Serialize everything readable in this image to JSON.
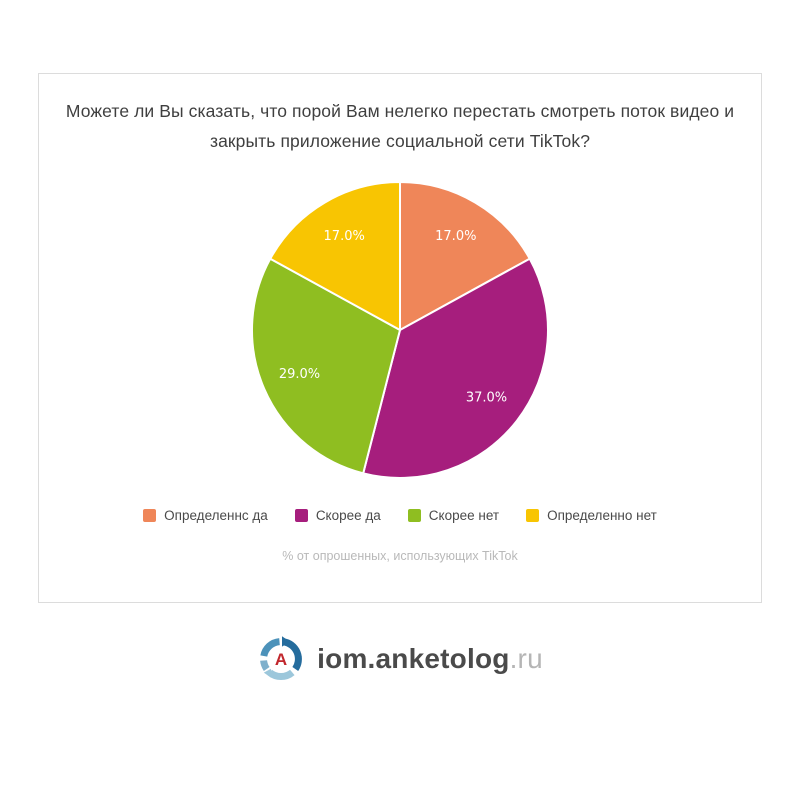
{
  "card": {
    "border_color": "#dcdcdc",
    "title_color": "#3f3f3f"
  },
  "chart_data": {
    "type": "pie",
    "title": "Можете ли Вы сказать, что порой Вам нелегко перестать смотреть поток видео и закрыть приложение социальной сети TikTok?",
    "note": "% от опрошенных, использующих TikTok",
    "start_angle_deg": -90,
    "direction": "clockwise",
    "label_radius": 0.74,
    "slice_label_format": "percent_one_decimal",
    "legend_position": "bottom",
    "slices": [
      {
        "key": "definitely-yes",
        "label": "Определеннс да",
        "value": 17.0,
        "color": "#EF8659"
      },
      {
        "key": "rather-yes",
        "label": "Скорее да",
        "value": 37.0,
        "color": "#A61E7D"
      },
      {
        "key": "rather-no",
        "label": "Скорее нет",
        "value": 29.0,
        "color": "#8FBE21"
      },
      {
        "key": "definitely-no",
        "label": "Определенно нет",
        "value": 17.0,
        "color": "#F8C502"
      }
    ]
  },
  "footer_logo": {
    "text_main": "iom.anketolog",
    "text_suffix": ".ru",
    "icon": "anketolog-circular-arrows-a-logo",
    "icon_letter": "A",
    "colors": {
      "letter_red": "#C1272D",
      "arc_dark_blue": "#256C9D",
      "arc_medium_blue": "#4C92BA",
      "arc_light_blue": "#9CC7DB",
      "arc_left_blue": "#7FB0CC",
      "text_main": "#4a4a4a",
      "text_suffix": "#b5b5b5"
    }
  }
}
